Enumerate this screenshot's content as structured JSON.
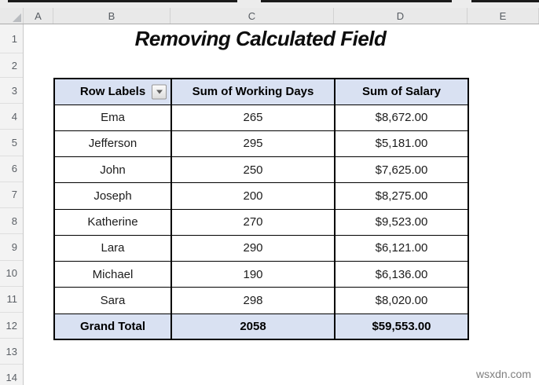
{
  "title": "Removing Calculated Field",
  "watermark": "wsxdn.com",
  "sheet": {
    "column_headers": [
      "A",
      "B",
      "C",
      "D",
      "E"
    ],
    "row_numbers": [
      "1",
      "2",
      "3",
      "4",
      "5",
      "6",
      "7",
      "8",
      "9",
      "10",
      "11",
      "12",
      "13",
      "14"
    ]
  },
  "pivot_table": {
    "columns": [
      "Row Labels",
      "Sum of Working Days",
      "Sum of Salary"
    ],
    "filter_icon": "chevron-down-icon",
    "rows": [
      [
        "Ema",
        "265",
        "$8,672.00"
      ],
      [
        "Jefferson",
        "295",
        "$5,181.00"
      ],
      [
        "John",
        "250",
        "$7,625.00"
      ],
      [
        "Joseph",
        "200",
        "$8,275.00"
      ],
      [
        "Katherine",
        "270",
        "$9,523.00"
      ],
      [
        "Lara",
        "290",
        "$6,121.00"
      ],
      [
        "Michael",
        "190",
        "$6,136.00"
      ],
      [
        "Sara",
        "298",
        "$8,020.00"
      ]
    ],
    "grand_total": [
      "Grand Total",
      "2058",
      "$59,553.00"
    ],
    "colors": {
      "header_fill": "#D9E1F2",
      "table_border": "#000000"
    }
  }
}
